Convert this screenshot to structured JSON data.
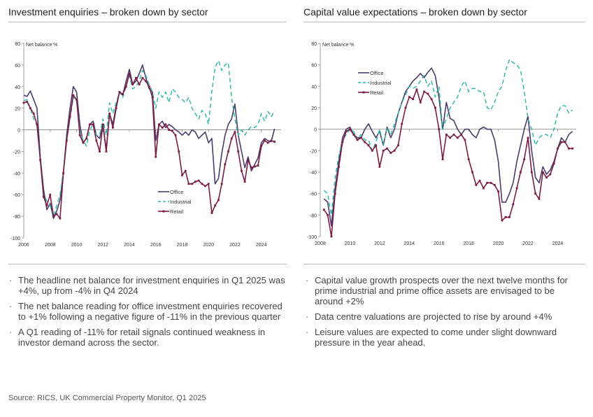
{
  "left_panel": {
    "title": "Investment enquiries – broken down by sector",
    "bullets": [
      "The headline net balance for investment enquiries in Q1 2025 was +4%, up from -4% in Q4 2024",
      "The net balance reading for office investment enquiries recovered to +1% following a negative figure of -11% in the previous quarter",
      "A Q1 reading of -11% for retail signals continued weakness in investor demand across the sector."
    ]
  },
  "right_panel": {
    "title": "Capital value expectations – broken down by sector",
    "bullets": [
      "Capital value growth prospects over the next twelve months for prime industrial and prime office assets are envisaged to be around +2%",
      "Data centre valuations are projected to rise by around +4%",
      "Leisure values are expected to come under slight downward pressure in the year ahead."
    ]
  },
  "bullet_glyph": "·",
  "source": "Source: RICS, UK Commercial Property Monitor, Q1 2025",
  "colors": {
    "office": "#4a3b6b",
    "industrial": "#27b5a3",
    "retail": "#7b1c45",
    "axis": "#888888",
    "rule": "#bdbdbd"
  },
  "chart_data": [
    {
      "type": "line",
      "title": "",
      "ylabel": "Net balance %",
      "xlabel": "",
      "ylim": [
        -100,
        80
      ],
      "xlim": [
        2006,
        2025.5
      ],
      "yticks": [
        "80",
        "60",
        "40",
        "20",
        "0",
        "-20",
        "-40",
        "-60",
        "-80",
        "-100"
      ],
      "xticks": [
        "2006",
        "2008",
        "2010",
        "2012",
        "2014",
        "2016",
        "2018",
        "2020",
        "2022",
        "2024"
      ],
      "legend_position": "bottom-right",
      "series": [
        {
          "name": "Office",
          "style": "solid",
          "x": [
            2006,
            2006.25,
            2006.5,
            2006.75,
            2007,
            2007.25,
            2007.5,
            2007.75,
            2008,
            2008.25,
            2008.5,
            2008.75,
            2009,
            2009.25,
            2009.5,
            2009.75,
            2010,
            2010.25,
            2010.5,
            2010.75,
            2011,
            2011.25,
            2011.5,
            2011.75,
            2012,
            2012.25,
            2012.5,
            2012.75,
            2013,
            2013.25,
            2013.5,
            2013.75,
            2014,
            2014.25,
            2014.5,
            2014.75,
            2015,
            2015.25,
            2015.5,
            2015.75,
            2016,
            2016.25,
            2016.5,
            2016.75,
            2017,
            2017.25,
            2017.5,
            2017.75,
            2018,
            2018.25,
            2018.5,
            2018.75,
            2019,
            2019.25,
            2019.5,
            2019.75,
            2020,
            2020.25,
            2020.5,
            2020.75,
            2021,
            2021.25,
            2021.5,
            2021.75,
            2022,
            2022.25,
            2022.5,
            2022.75,
            2023,
            2023.25,
            2023.5,
            2023.75,
            2024,
            2024.25,
            2024.5,
            2024.75,
            2025
          ],
          "y": [
            32,
            31,
            36,
            28,
            20,
            -25,
            -55,
            -74,
            -68,
            -82,
            -75,
            -65,
            -40,
            -5,
            20,
            40,
            35,
            5,
            -12,
            -8,
            5,
            8,
            -5,
            -8,
            5,
            -18,
            15,
            5,
            22,
            35,
            32,
            45,
            56,
            42,
            45,
            52,
            60,
            48,
            38,
            35,
            -10,
            5,
            8,
            2,
            5,
            3,
            0,
            -2,
            -5,
            -2,
            -5,
            0,
            -2,
            -8,
            -5,
            -2,
            -12,
            -8,
            -50,
            -45,
            -22,
            -5,
            5,
            10,
            24,
            -5,
            -20,
            -35,
            -25,
            -38,
            -32,
            -26,
            -12,
            -8,
            -10,
            -11,
            1
          ]
        },
        {
          "name": "Industrial",
          "style": "dashed",
          "x": [
            2006,
            2006.25,
            2006.5,
            2006.75,
            2007,
            2007.25,
            2007.5,
            2007.75,
            2008,
            2008.25,
            2008.5,
            2008.75,
            2009,
            2009.25,
            2009.5,
            2009.75,
            2010,
            2010.25,
            2010.5,
            2010.75,
            2011,
            2011.25,
            2011.5,
            2011.75,
            2012,
            2012.25,
            2012.5,
            2012.75,
            2013,
            2013.25,
            2013.5,
            2013.75,
            2014,
            2014.25,
            2014.5,
            2014.75,
            2015,
            2015.25,
            2015.5,
            2015.75,
            2016,
            2016.25,
            2016.5,
            2016.75,
            2017,
            2017.25,
            2017.5,
            2017.75,
            2018,
            2018.25,
            2018.5,
            2018.75,
            2019,
            2019.25,
            2019.5,
            2019.75,
            2020,
            2020.25,
            2020.5,
            2020.75,
            2021,
            2021.25,
            2021.5,
            2021.75,
            2022,
            2022.25,
            2022.5,
            2022.75,
            2023,
            2023.25,
            2023.5,
            2023.75,
            2024,
            2024.25,
            2024.5,
            2024.75,
            2025
          ],
          "y": [
            27,
            28,
            20,
            10,
            5,
            -25,
            -60,
            -66,
            -70,
            -80,
            -70,
            -60,
            -38,
            -8,
            10,
            30,
            28,
            0,
            -10,
            -15,
            0,
            5,
            -5,
            -5,
            10,
            -5,
            25,
            15,
            25,
            35,
            30,
            40,
            50,
            38,
            40,
            45,
            55,
            50,
            42,
            35,
            20,
            35,
            30,
            35,
            25,
            38,
            35,
            30,
            28,
            25,
            30,
            20,
            15,
            10,
            18,
            15,
            5,
            35,
            58,
            64,
            55,
            60,
            62,
            30,
            10,
            -5,
            0,
            -5,
            0,
            3,
            2,
            5,
            15,
            8,
            17,
            12,
            18
          ]
        },
        {
          "name": "Retail",
          "style": "solid-markers",
          "x": [
            2006,
            2006.25,
            2006.5,
            2006.75,
            2007,
            2007.25,
            2007.5,
            2007.75,
            2008,
            2008.25,
            2008.5,
            2008.75,
            2009,
            2009.25,
            2009.5,
            2009.75,
            2010,
            2010.25,
            2010.5,
            2010.75,
            2011,
            2011.25,
            2011.5,
            2011.75,
            2012,
            2012.25,
            2012.5,
            2012.75,
            2013,
            2013.25,
            2013.5,
            2013.75,
            2014,
            2014.25,
            2014.5,
            2014.75,
            2015,
            2015.25,
            2015.5,
            2015.75,
            2016,
            2016.25,
            2016.5,
            2016.75,
            2017,
            2017.25,
            2017.5,
            2017.75,
            2018,
            2018.25,
            2018.5,
            2018.75,
            2019,
            2019.25,
            2019.5,
            2019.75,
            2020,
            2020.25,
            2020.5,
            2020.75,
            2021,
            2021.25,
            2021.5,
            2021.75,
            2022,
            2022.25,
            2022.5,
            2022.75,
            2023,
            2023.25,
            2023.5,
            2023.75,
            2024,
            2024.25,
            2024.5,
            2024.75,
            2025
          ],
          "y": [
            25,
            26,
            20,
            15,
            5,
            -28,
            -62,
            -70,
            -60,
            -80,
            -78,
            -82,
            -40,
            -10,
            12,
            32,
            28,
            -5,
            -12,
            -8,
            5,
            5,
            -10,
            -20,
            5,
            -20,
            15,
            2,
            20,
            35,
            33,
            40,
            52,
            42,
            48,
            42,
            48,
            45,
            40,
            30,
            -25,
            5,
            2,
            5,
            0,
            -1,
            -5,
            -20,
            -42,
            -38,
            -50,
            -50,
            -48,
            -47,
            -50,
            -52,
            -50,
            -77,
            -70,
            -65,
            -50,
            -32,
            -20,
            -8,
            -2,
            -20,
            -38,
            -48,
            -28,
            -35,
            -34,
            -33,
            -15,
            -10,
            -12,
            -10,
            -11
          ]
        }
      ]
    },
    {
      "type": "line",
      "title": "",
      "ylabel": "Net balance %",
      "xlabel": "",
      "ylim": [
        -100,
        80
      ],
      "xlim": [
        2008,
        2025.25
      ],
      "yticks": [
        "80",
        "60",
        "40",
        "20",
        "0",
        "-20",
        "-40",
        "-60",
        "-80",
        "-100"
      ],
      "xticks": [
        "2008",
        "2010",
        "2012",
        "2014",
        "2016",
        "2018",
        "2020",
        "2022",
        "2024"
      ],
      "legend_position": "top-left",
      "series": [
        {
          "name": "Office",
          "style": "solid",
          "x": [
            2008.25,
            2008.5,
            2008.75,
            2009,
            2009.25,
            2009.5,
            2009.75,
            2010,
            2010.25,
            2010.5,
            2010.75,
            2011,
            2011.25,
            2011.5,
            2011.75,
            2012,
            2012.25,
            2012.5,
            2012.75,
            2013,
            2013.25,
            2013.5,
            2013.75,
            2014,
            2014.25,
            2014.5,
            2014.75,
            2015,
            2015.25,
            2015.5,
            2015.75,
            2016,
            2016.25,
            2016.5,
            2016.75,
            2017,
            2017.25,
            2017.5,
            2017.75,
            2018,
            2018.25,
            2018.5,
            2018.75,
            2019,
            2019.25,
            2019.5,
            2019.75,
            2020,
            2020.25,
            2020.5,
            2020.75,
            2021,
            2021.25,
            2021.5,
            2021.75,
            2022,
            2022.25,
            2022.5,
            2022.75,
            2023,
            2023.25,
            2023.5,
            2023.75,
            2024,
            2024.25,
            2024.5,
            2024.75,
            2025
          ],
          "y": [
            -65,
            -68,
            -90,
            -55,
            -30,
            -8,
            0,
            2,
            -5,
            -8,
            -8,
            0,
            5,
            -2,
            -8,
            -2,
            -15,
            2,
            -8,
            0,
            15,
            25,
            35,
            40,
            45,
            48,
            52,
            48,
            53,
            57,
            50,
            30,
            0,
            25,
            10,
            8,
            0,
            -5,
            0,
            0,
            -5,
            -8,
            0,
            2,
            0,
            0,
            -10,
            -30,
            -68,
            -68,
            -60,
            -50,
            -30,
            -15,
            0,
            12,
            -20,
            -45,
            -50,
            -35,
            -42,
            -38,
            -30,
            -18,
            -8,
            -12,
            -5,
            -2
          ]
        },
        {
          "name": "Industrial",
          "style": "dashed",
          "x": [
            2008.25,
            2008.5,
            2008.75,
            2009,
            2009.25,
            2009.5,
            2009.75,
            2010,
            2010.25,
            2010.5,
            2010.75,
            2011,
            2011.25,
            2011.5,
            2011.75,
            2012,
            2012.25,
            2012.5,
            2012.75,
            2013,
            2013.25,
            2013.5,
            2013.75,
            2014,
            2014.25,
            2014.5,
            2014.75,
            2015,
            2015.25,
            2015.5,
            2015.75,
            2016,
            2016.25,
            2016.5,
            2016.75,
            2017,
            2017.25,
            2017.5,
            2017.75,
            2018,
            2018.25,
            2018.5,
            2018.75,
            2019,
            2019.25,
            2019.5,
            2019.75,
            2020,
            2020.25,
            2020.5,
            2020.75,
            2021,
            2021.25,
            2021.5,
            2021.75,
            2022,
            2022.25,
            2022.5,
            2022.75,
            2023,
            2023.25,
            2023.5,
            2023.75,
            2024,
            2024.25,
            2024.5,
            2024.75,
            2025
          ],
          "y": [
            -57,
            -60,
            -80,
            -45,
            -25,
            -10,
            -5,
            0,
            -2,
            -10,
            -5,
            -10,
            -10,
            -20,
            -12,
            0,
            -15,
            2,
            -5,
            5,
            15,
            25,
            32,
            40,
            38,
            40,
            45,
            50,
            40,
            45,
            30,
            40,
            0,
            10,
            20,
            25,
            30,
            40,
            45,
            35,
            38,
            38,
            35,
            35,
            20,
            18,
            25,
            35,
            40,
            55,
            65,
            62,
            60,
            55,
            35,
            10,
            0,
            -15,
            -8,
            -5,
            -5,
            -8,
            0,
            15,
            22,
            22,
            15,
            18
          ]
        },
        {
          "name": "Retail",
          "style": "solid-markers",
          "x": [
            2008.25,
            2008.5,
            2008.75,
            2009,
            2009.25,
            2009.5,
            2009.75,
            2010,
            2010.25,
            2010.5,
            2010.75,
            2011,
            2011.25,
            2011.5,
            2011.75,
            2012,
            2012.25,
            2012.5,
            2012.75,
            2013,
            2013.25,
            2013.5,
            2013.75,
            2014,
            2014.25,
            2014.5,
            2014.75,
            2015,
            2015.25,
            2015.5,
            2015.75,
            2016,
            2016.25,
            2016.5,
            2016.75,
            2017,
            2017.25,
            2017.5,
            2017.75,
            2018,
            2018.25,
            2018.5,
            2018.75,
            2019,
            2019.25,
            2019.5,
            2019.75,
            2020,
            2020.25,
            2020.5,
            2020.75,
            2021,
            2021.25,
            2021.5,
            2021.75,
            2022,
            2022.25,
            2022.5,
            2022.75,
            2023,
            2023.25,
            2023.5,
            2023.75,
            2024,
            2024.25,
            2024.5,
            2024.75,
            2025
          ],
          "y": [
            -75,
            -80,
            -100,
            -60,
            -35,
            -12,
            -2,
            0,
            -5,
            -10,
            -8,
            -12,
            -15,
            -20,
            -15,
            -35,
            -20,
            -18,
            -22,
            -20,
            -15,
            5,
            20,
            30,
            28,
            37,
            25,
            35,
            33,
            28,
            20,
            0,
            -28,
            -5,
            -8,
            -5,
            -8,
            -5,
            -10,
            -28,
            -40,
            -52,
            -48,
            -55,
            -50,
            -50,
            -52,
            -58,
            -85,
            -82,
            -82,
            -70,
            -55,
            -40,
            -28,
            -8,
            -40,
            -60,
            -65,
            -40,
            -45,
            -42,
            -32,
            -18,
            -12,
            -12,
            -18,
            -18
          ]
        }
      ]
    }
  ]
}
